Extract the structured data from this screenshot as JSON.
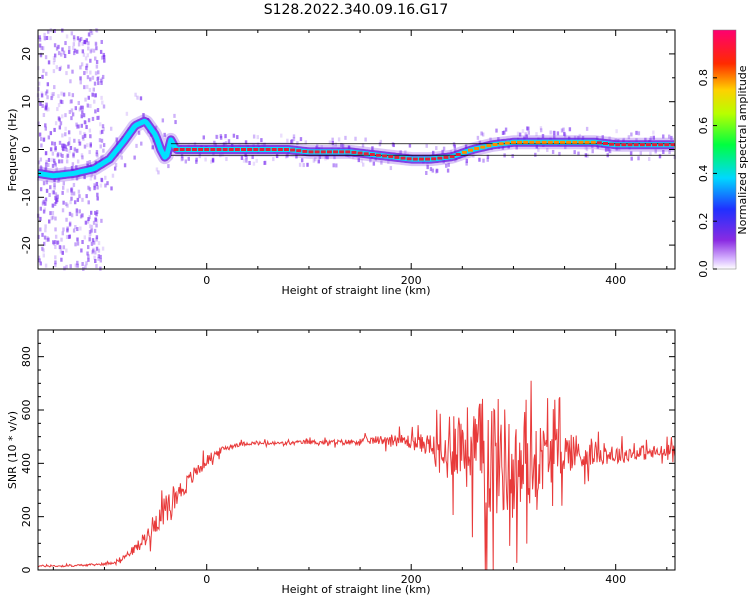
{
  "title": "S128.2022.340.09.16.G17",
  "colors": {
    "snr_line": "#e83a3a",
    "grid": "#000000",
    "track_low": "#6a1de0",
    "track_mid": "#00e0ff",
    "track_high": "#e0203a",
    "scatter": "#7a2ef0"
  },
  "chart_data": [
    {
      "type": "heatmap",
      "xlabel": "Height of straight line (km)",
      "ylabel": "Frequency (Hz)",
      "xlim": [
        -165,
        458
      ],
      "ylim": [
        -25,
        25
      ],
      "xticks": [
        0,
        200,
        400
      ],
      "yticks": [
        -20,
        -10,
        0,
        10,
        20
      ],
      "grid": false,
      "colorbar": {
        "label": "Normalized spectral amplitude",
        "range": [
          0.0,
          1.0
        ],
        "ticks": [
          0.0,
          0.2,
          0.4,
          0.6,
          0.8
        ],
        "colormap": "rainbow (purple-blue-cyan-green-yellow-red-magenta)"
      },
      "ridge": {
        "x": [
          -165,
          -150,
          -130,
          -110,
          -95,
          -80,
          -70,
          -60,
          -50,
          -45,
          -40,
          -35,
          -30,
          -20,
          0,
          40,
          80,
          100,
          140,
          160,
          180,
          200,
          220,
          240,
          260,
          280,
          300,
          340,
          380,
          400,
          420,
          458
        ],
        "y": [
          -5,
          -5.5,
          -5,
          -4,
          -2,
          2,
          5,
          6,
          3,
          0,
          -2,
          2,
          0,
          0,
          0,
          0,
          0,
          -0.5,
          -0.5,
          -1,
          -1.5,
          -2,
          -2,
          -1.5,
          0,
          1,
          1.5,
          1.5,
          1.5,
          1,
          1,
          1
        ]
      }
    },
    {
      "type": "line",
      "xlabel": "Height of straight line (km)",
      "ylabel": "SNR (10 * v/v)",
      "xlim": [
        -165,
        458
      ],
      "ylim": [
        0,
        900
      ],
      "xticks": [
        0,
        200,
        400
      ],
      "yticks": [
        0,
        200,
        400,
        600,
        800
      ],
      "grid": false,
      "series": [
        {
          "x": [
            -165,
            -140,
            -120,
            -100,
            -90,
            -80,
            -70,
            -60,
            -50,
            -40,
            -30,
            -20,
            -10,
            0,
            10,
            20,
            30,
            40,
            60,
            80,
            100,
            120,
            140,
            160,
            180,
            200,
            220,
            230,
            240,
            250,
            260,
            270,
            280,
            290,
            300,
            310,
            320,
            330,
            340,
            350,
            360,
            370,
            380,
            400,
            420,
            440,
            458
          ],
          "values": [
            15,
            15,
            18,
            22,
            30,
            50,
            80,
            120,
            180,
            230,
            280,
            320,
            370,
            410,
            440,
            460,
            470,
            475,
            475,
            475,
            480,
            478,
            480,
            485,
            490,
            480,
            470,
            400,
            500,
            470,
            450,
            430,
            430,
            420,
            360,
            380,
            400,
            430,
            440,
            440,
            450,
            420,
            440,
            430,
            440,
            440,
            440
          ],
          "amplitude": [
            5,
            5,
            5,
            6,
            8,
            15,
            25,
            40,
            60,
            70,
            60,
            50,
            40,
            30,
            20,
            15,
            12,
            10,
            10,
            10,
            12,
            12,
            15,
            20,
            30,
            40,
            60,
            150,
            200,
            200,
            250,
            300,
            350,
            300,
            280,
            250,
            200,
            180,
            150,
            120,
            100,
            80,
            60,
            50,
            40,
            40,
            40
          ]
        }
      ]
    }
  ]
}
